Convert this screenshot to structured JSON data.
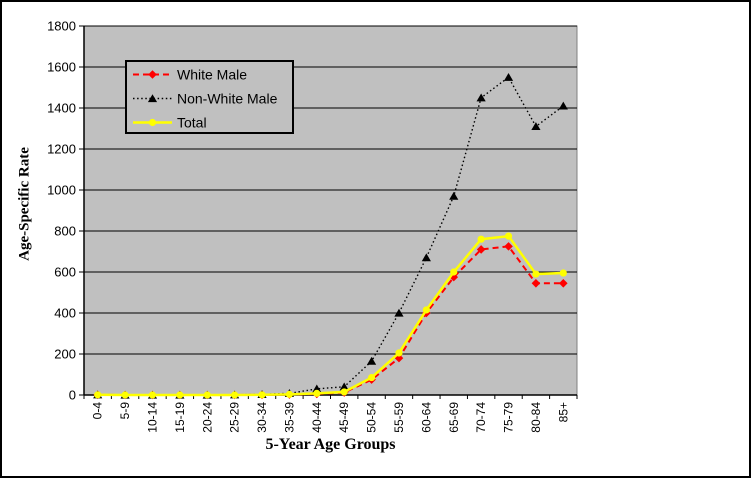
{
  "chart_data": {
    "type": "line",
    "xlabel": "5-Year Age Groups",
    "ylabel": "Age-Specific Rate",
    "ylim": [
      0,
      1800
    ],
    "yticks": [
      0,
      200,
      400,
      600,
      800,
      1000,
      1200,
      1400,
      1600,
      1800
    ],
    "grid": "horizontal",
    "plot_background": "#C0C0C0",
    "plot_border_color": "#808080",
    "axis_color": "#000000",
    "categories": [
      "0-4",
      "5-9",
      "10-14",
      "15-19",
      "20-24",
      "25-29",
      "30-34",
      "35-39",
      "40-44",
      "45-49",
      "50-54",
      "55-59",
      "60-64",
      "65-69",
      "70-74",
      "75-79",
      "80-84",
      "85+"
    ],
    "series": [
      {
        "name": "White Male",
        "color": "#FF0000",
        "line_style": "dashed",
        "marker": "diamond",
        "values": [
          1,
          0,
          0,
          0,
          0,
          0,
          1,
          2,
          5,
          12,
          75,
          180,
          400,
          575,
          710,
          725,
          545,
          545
        ]
      },
      {
        "name": "Non-White Male",
        "color": "#000000",
        "line_style": "dotted",
        "marker": "triangle",
        "values": [
          1,
          0,
          0,
          0,
          0,
          1,
          3,
          8,
          30,
          40,
          165,
          400,
          670,
          970,
          1450,
          1550,
          1310,
          1410
        ]
      },
      {
        "name": "Total",
        "color": "#FFFF00",
        "line_style": "solid",
        "marker": "circle",
        "values": [
          1,
          0,
          0,
          0,
          0,
          0,
          1,
          3,
          8,
          15,
          85,
          205,
          415,
          600,
          760,
          775,
          590,
          595
        ]
      }
    ],
    "legend": {
      "position": "top-left-inside",
      "background": "#C0C0C0",
      "border_color": "#000000",
      "entries": [
        "White Male",
        "Non-White Male",
        "Total"
      ]
    }
  }
}
